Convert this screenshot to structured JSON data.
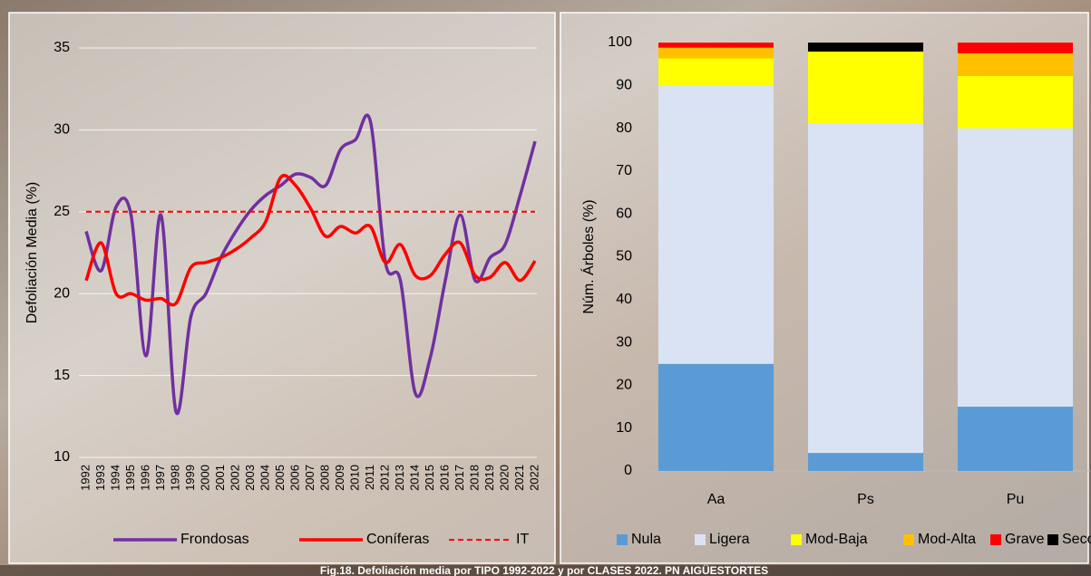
{
  "caption": "Fig.18. Defoliación media por TIPO 1992-2022 y por CLASES 2022. PN AIGÜESTORTES",
  "chart_data": [
    {
      "type": "line",
      "y_label": "Defoliación Media (%)",
      "categories": [
        "1992",
        "1993",
        "1994",
        "1995",
        "1996",
        "1997",
        "1998",
        "1999",
        "2000",
        "2001",
        "2002",
        "2003",
        "2004",
        "2005",
        "2006",
        "2007",
        "2008",
        "2009",
        "2010",
        "2011",
        "2012",
        "2013",
        "2014",
        "2015",
        "2016",
        "2017",
        "2018",
        "2019",
        "2020",
        "2021",
        "2022"
      ],
      "series": [
        {
          "name": "Frondosas",
          "color": "#7030a0",
          "dashed": false,
          "values": [
            23.8,
            21.4,
            25.3,
            24.8,
            16.2,
            24.8,
            12.8,
            18.6,
            20.0,
            22.2,
            23.8,
            25.1,
            26.0,
            26.6,
            27.3,
            27.1,
            26.6,
            28.8,
            29.4,
            30.5,
            21.9,
            20.8,
            13.9,
            16.1,
            20.8,
            24.8,
            20.8,
            22.2,
            23.0,
            26.0,
            29.3
          ]
        },
        {
          "name": "Coníferas",
          "color": "#ff0000",
          "dashed": false,
          "values": [
            20.8,
            23.1,
            20.0,
            20.0,
            19.6,
            19.7,
            19.4,
            21.6,
            21.9,
            22.2,
            22.7,
            23.4,
            24.4,
            27.1,
            26.6,
            25.2,
            23.5,
            24.1,
            23.7,
            24.1,
            21.9,
            23.0,
            21.1,
            21.1,
            22.4,
            23.1,
            21.1,
            21.0,
            21.9,
            20.8,
            22.0
          ]
        },
        {
          "name": "IT",
          "color": "#ff0000",
          "dashed": true,
          "values": [
            25,
            25,
            25,
            25,
            25,
            25,
            25,
            25,
            25,
            25,
            25,
            25,
            25,
            25,
            25,
            25,
            25,
            25,
            25,
            25,
            25,
            25,
            25,
            25,
            25,
            25,
            25,
            25,
            25,
            25,
            25
          ]
        }
      ],
      "ylim": [
        10,
        35
      ],
      "yticks": [
        10,
        15,
        20,
        25,
        30,
        35
      ],
      "grid": true,
      "legend": "bottom"
    },
    {
      "type": "stacked-bar",
      "y_label": "Núm. Árboles (%)",
      "categories": [
        "Aa",
        "Ps",
        "Pu"
      ],
      "series": [
        {
          "name": "Nula",
          "color": "#5b9bd5",
          "values": [
            25,
            4.2,
            15
          ]
        },
        {
          "name": "Ligera",
          "color": "#dae3f3",
          "values": [
            65,
            77,
            65
          ]
        },
        {
          "name": "Mod-Baja",
          "color": "#ffff00",
          "values": [
            6.3,
            16.7,
            12.2
          ]
        },
        {
          "name": "Mod-Alta",
          "color": "#ffc000",
          "values": [
            2.5,
            0,
            5.3
          ]
        },
        {
          "name": "Grave",
          "color": "#ff0000",
          "values": [
            1.2,
            0,
            2.5
          ]
        },
        {
          "name": "Seco",
          "color": "#000000",
          "values": [
            0,
            2.1,
            0
          ]
        }
      ],
      "ylim": [
        0,
        100
      ],
      "yticks": [
        0,
        10,
        20,
        30,
        40,
        50,
        60,
        70,
        80,
        90,
        100
      ],
      "grid": false,
      "legend": "bottom"
    }
  ]
}
